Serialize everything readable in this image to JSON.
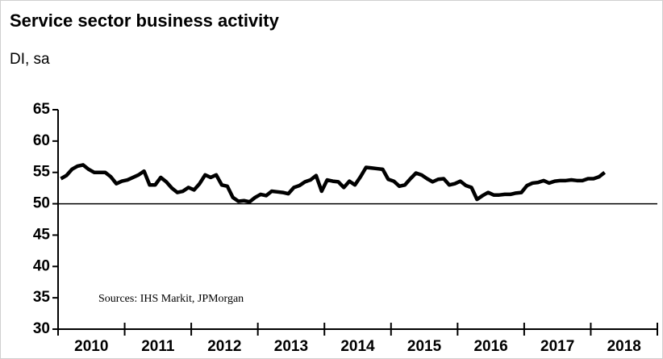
{
  "chart_data": {
    "type": "line",
    "title": "Service sector business activity",
    "subtitle": "DI, sa",
    "annotation": "Sources: IHS Markit, JPMorgan",
    "categories": [
      null,
      null,
      null,
      null,
      null,
      null,
      "2010",
      null,
      null,
      null,
      null,
      null,
      null,
      null,
      null,
      null,
      null,
      null,
      "2011",
      null,
      null,
      null,
      null,
      null,
      null,
      null,
      null,
      null,
      null,
      null,
      "2012",
      null,
      null,
      null,
      null,
      null,
      null,
      null,
      null,
      null,
      null,
      null,
      "2013",
      null,
      null,
      null,
      null,
      null,
      null,
      null,
      null,
      null,
      null,
      null,
      "2014",
      null,
      null,
      null,
      null,
      null,
      null,
      null,
      null,
      null,
      null,
      null,
      "2015",
      null,
      null,
      null,
      null,
      null,
      null,
      null,
      null,
      null,
      null,
      null,
      "2016",
      null,
      null,
      null,
      null,
      null,
      null,
      null,
      null,
      null,
      null,
      null,
      "2017",
      null,
      null,
      null,
      null,
      null,
      null,
      null,
      null,
      null,
      null,
      null,
      "2018",
      null,
      null,
      null,
      null,
      null
    ],
    "series": [
      {
        "name": "Service sector business activity",
        "color": "#000000",
        "values": [
          54,
          54.5,
          55.5,
          56,
          56.2,
          55.5,
          55,
          55,
          55,
          54.3,
          53.2,
          53.6,
          53.8,
          54.2,
          54.6,
          55.2,
          53,
          53,
          54.2,
          53.5,
          52.5,
          51.8,
          52,
          52.6,
          52.2,
          53.2,
          54.6,
          54.2,
          54.6,
          53,
          52.8,
          51,
          50.4,
          50.5,
          50.3,
          51,
          51.5,
          51.3,
          52,
          51.9,
          51.8,
          51.6,
          52.6,
          52.9,
          53.5,
          53.8,
          54.5,
          52,
          53.8,
          53.6,
          53.5,
          52.6,
          53.6,
          53,
          54.3,
          55.8,
          55.7,
          55.6,
          55.5,
          53.9,
          53.6,
          52.8,
          53,
          54,
          54.9,
          54.6,
          54,
          53.5,
          53.9,
          54,
          53,
          53.2,
          53.6,
          52.9,
          52.6,
          50.7,
          51.3,
          51.8,
          51.4,
          51.4,
          51.5,
          51.5,
          51.7,
          51.8,
          52.9,
          53.3,
          53.4,
          53.7,
          53.3,
          53.6,
          53.7,
          53.7,
          53.8,
          53.7,
          53.7,
          54,
          54,
          54.3,
          55,
          null,
          null,
          null,
          null,
          null,
          null,
          null,
          null,
          null
        ]
      }
    ],
    "ylim": [
      30,
      65
    ],
    "yticks": [
      30,
      35,
      40,
      45,
      50,
      55,
      60,
      65
    ],
    "reference_line": 50,
    "grid": false
  }
}
